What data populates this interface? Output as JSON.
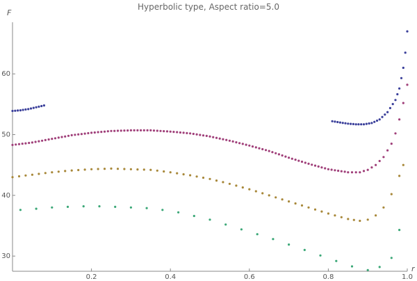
{
  "chart_data": {
    "type": "scatter",
    "title": "Hyperbolic type, Aspect ratio=5.0",
    "xlabel": "r",
    "ylabel": "F",
    "xlim": [
      0.0,
      1.0
    ],
    "ylim": [
      27.5,
      68.5
    ],
    "x_ticks": [
      {
        "value": 0.2,
        "label": "0.2"
      },
      {
        "value": 0.4,
        "label": "0.4"
      },
      {
        "value": 0.6,
        "label": "0.6"
      },
      {
        "value": 0.8,
        "label": "0.8"
      },
      {
        "value": 1.0,
        "label": "1.0"
      }
    ],
    "y_ticks": [
      {
        "value": 30,
        "label": "30"
      },
      {
        "value": 40,
        "label": "40"
      },
      {
        "value": 50,
        "label": "50"
      },
      {
        "value": 60,
        "label": "60"
      }
    ],
    "grid": false,
    "series": [
      {
        "color": "#3a3f9a",
        "segments": [
          [
            [
              0.0,
              53.9
            ],
            [
              0.02,
              54.0
            ],
            [
              0.04,
              54.2
            ],
            [
              0.06,
              54.5
            ],
            [
              0.08,
              54.8
            ]
          ],
          [
            [
              0.81,
              52.2
            ],
            [
              0.83,
              52.0
            ],
            [
              0.85,
              51.8
            ],
            [
              0.87,
              51.7
            ],
            [
              0.89,
              51.7
            ],
            [
              0.91,
              51.9
            ],
            [
              0.93,
              52.5
            ],
            [
              0.95,
              53.7
            ],
            [
              0.97,
              55.7
            ],
            [
              0.98,
              57.6
            ],
            [
              0.99,
              61.0
            ],
            [
              0.995,
              63.5
            ],
            [
              1.0,
              67.0
            ]
          ]
        ]
      },
      {
        "color": "#a0407a",
        "segments": [
          [
            [
              0.0,
              48.3
            ],
            [
              0.05,
              48.7
            ],
            [
              0.1,
              49.3
            ],
            [
              0.15,
              49.9
            ],
            [
              0.2,
              50.3
            ],
            [
              0.25,
              50.6
            ],
            [
              0.3,
              50.7
            ],
            [
              0.35,
              50.7
            ],
            [
              0.4,
              50.5
            ],
            [
              0.45,
              50.2
            ],
            [
              0.5,
              49.7
            ],
            [
              0.55,
              49.0
            ],
            [
              0.6,
              48.2
            ],
            [
              0.65,
              47.3
            ],
            [
              0.7,
              46.2
            ],
            [
              0.75,
              45.2
            ],
            [
              0.8,
              44.3
            ],
            [
              0.85,
              43.8
            ],
            [
              0.88,
              43.8
            ],
            [
              0.9,
              44.2
            ],
            [
              0.92,
              45.0
            ],
            [
              0.94,
              46.3
            ],
            [
              0.96,
              48.5
            ],
            [
              0.97,
              50.2
            ],
            [
              0.98,
              52.5
            ],
            [
              0.99,
              55.2
            ],
            [
              1.0,
              58.2
            ]
          ]
        ]
      },
      {
        "color": "#a8883a",
        "segments": [
          [
            [
              0.0,
              43.0
            ],
            [
              0.05,
              43.4
            ],
            [
              0.1,
              43.8
            ],
            [
              0.15,
              44.1
            ],
            [
              0.2,
              44.3
            ],
            [
              0.25,
              44.4
            ],
            [
              0.3,
              44.3
            ],
            [
              0.35,
              44.2
            ],
            [
              0.4,
              43.8
            ],
            [
              0.45,
              43.3
            ],
            [
              0.5,
              42.7
            ],
            [
              0.55,
              41.9
            ],
            [
              0.6,
              41.0
            ],
            [
              0.65,
              40.0
            ],
            [
              0.7,
              39.0
            ],
            [
              0.75,
              38.0
            ],
            [
              0.8,
              37.0
            ],
            [
              0.85,
              36.1
            ],
            [
              0.88,
              35.8
            ],
            [
              0.9,
              36.0
            ],
            [
              0.92,
              36.7
            ],
            [
              0.94,
              38.0
            ],
            [
              0.96,
              40.2
            ],
            [
              0.98,
              43.2
            ],
            [
              0.99,
              45.0
            ]
          ]
        ]
      },
      {
        "color": "#3ca878",
        "segments": [
          [
            [
              0.02,
              37.6
            ],
            [
              0.06,
              37.8
            ],
            [
              0.1,
              38.0
            ],
            [
              0.14,
              38.1
            ],
            [
              0.18,
              38.2
            ],
            [
              0.22,
              38.2
            ],
            [
              0.26,
              38.1
            ],
            [
              0.3,
              38.0
            ],
            [
              0.34,
              37.9
            ],
            [
              0.38,
              37.6
            ],
            [
              0.42,
              37.2
            ],
            [
              0.46,
              36.6
            ],
            [
              0.5,
              36.0
            ],
            [
              0.54,
              35.2
            ],
            [
              0.58,
              34.4
            ],
            [
              0.62,
              33.6
            ],
            [
              0.66,
              32.8
            ],
            [
              0.7,
              31.9
            ],
            [
              0.74,
              31.0
            ],
            [
              0.78,
              30.1
            ],
            [
              0.82,
              29.2
            ],
            [
              0.86,
              28.3
            ],
            [
              0.9,
              27.7
            ],
            [
              0.93,
              28.2
            ],
            [
              0.96,
              29.7
            ],
            [
              0.98,
              34.3
            ]
          ]
        ]
      }
    ]
  }
}
